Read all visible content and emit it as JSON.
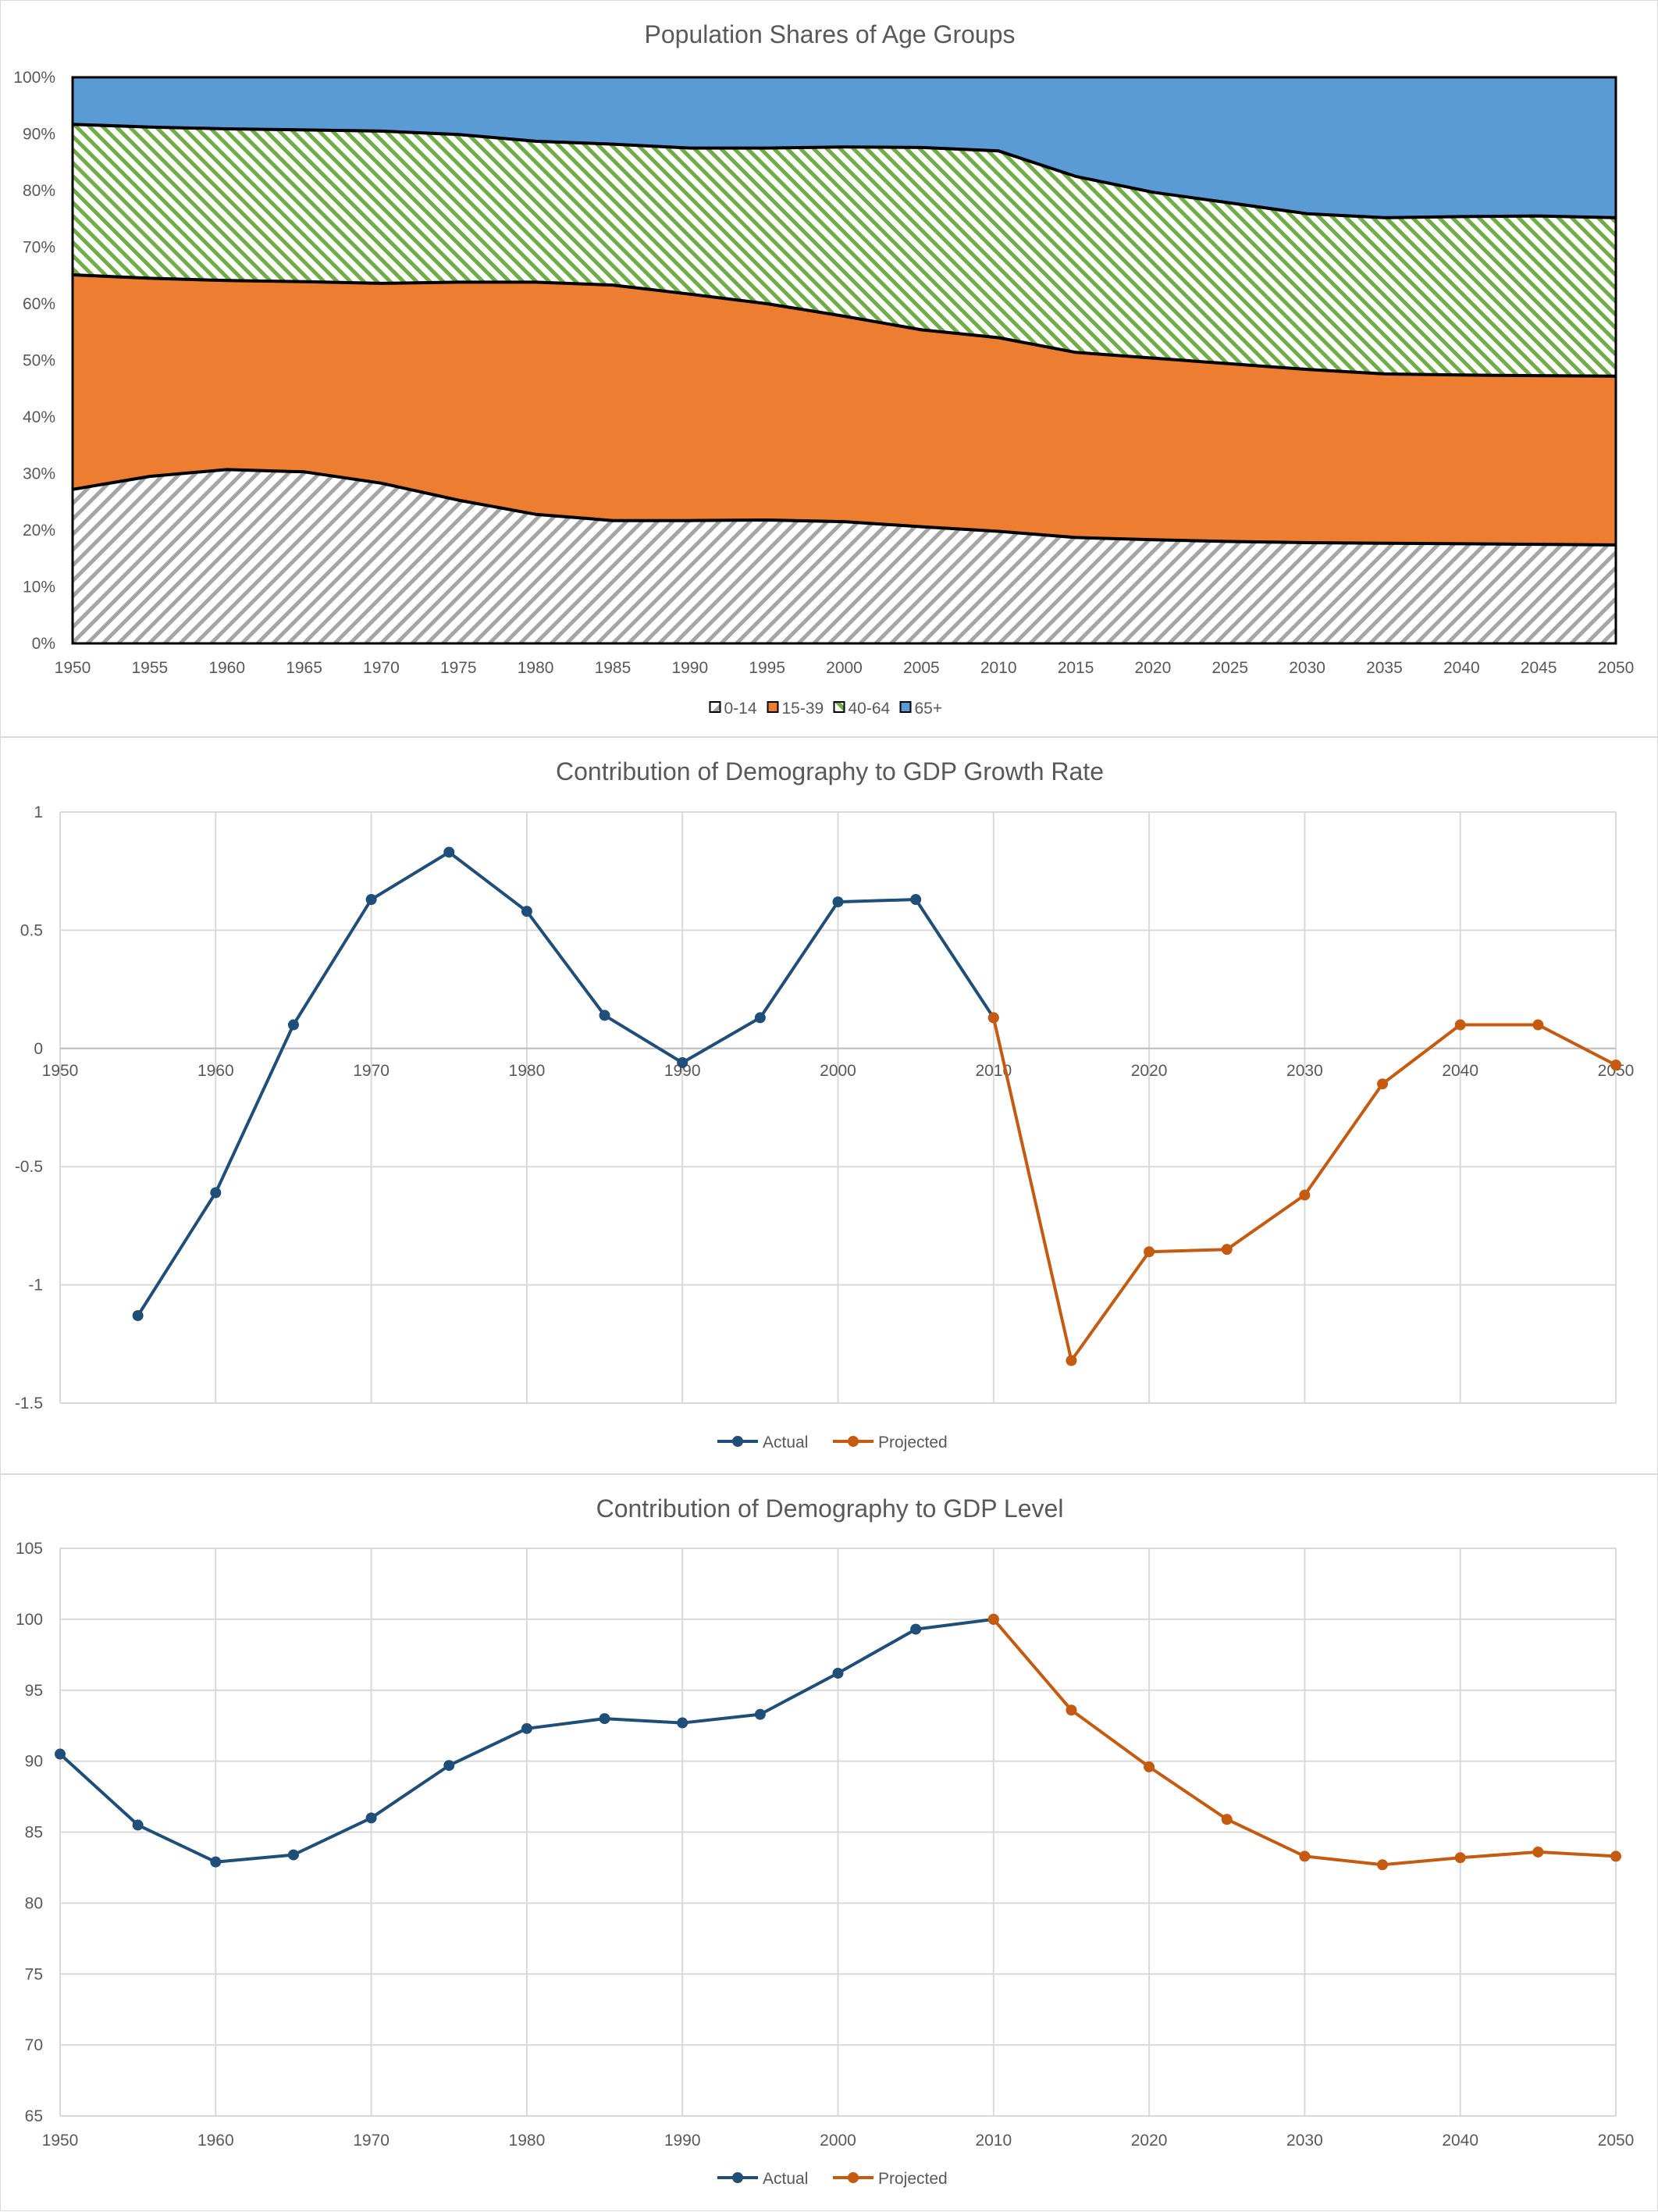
{
  "chart_data": [
    {
      "type": "area",
      "stacked": true,
      "percent": true,
      "title": "Population Shares of Age Groups",
      "x": [
        1950,
        1955,
        1960,
        1965,
        1970,
        1975,
        1980,
        1985,
        1990,
        1995,
        2000,
        2005,
        2010,
        2015,
        2020,
        2025,
        2030,
        2035,
        2040,
        2045,
        2050
      ],
      "yticks": [
        "0%",
        "10%",
        "20%",
        "30%",
        "40%",
        "50%",
        "60%",
        "70%",
        "80%",
        "90%",
        "100%"
      ],
      "ylim": [
        0,
        100
      ],
      "legend_position": "bottom",
      "series": [
        {
          "name": "0-14",
          "color": "#a5a5a5",
          "pattern": "diagonal-hatch",
          "values": [
            27.2,
            29.5,
            30.7,
            30.3,
            28.3,
            25.3,
            22.8,
            21.7,
            21.7,
            21.8,
            21.5,
            20.6,
            19.8,
            18.7,
            18.3,
            18.0,
            17.8,
            17.7,
            17.6,
            17.5,
            17.4
          ]
        },
        {
          "name": "15-39",
          "color": "#ed7d31",
          "values": [
            37.9,
            35.0,
            33.4,
            33.6,
            35.3,
            38.5,
            41.0,
            41.6,
            40.0,
            38.2,
            36.3,
            34.8,
            34.2,
            32.7,
            32.1,
            31.4,
            30.6,
            29.9,
            29.8,
            29.8,
            29.8
          ]
        },
        {
          "name": "40-64",
          "color": "#70ad47",
          "pattern": "diagonal-hatch",
          "values": [
            26.6,
            26.7,
            26.8,
            26.8,
            26.9,
            26.1,
            24.9,
            24.9,
            25.8,
            27.5,
            29.9,
            32.2,
            33.0,
            31.1,
            29.3,
            28.4,
            27.5,
            27.6,
            28.0,
            28.2,
            28.0
          ]
        },
        {
          "name": "65+",
          "color": "#5b9bd5",
          "values": [
            8.3,
            8.8,
            9.1,
            9.3,
            9.5,
            10.1,
            11.3,
            11.8,
            12.5,
            12.5,
            12.3,
            12.4,
            13.0,
            17.5,
            20.3,
            22.2,
            24.1,
            24.8,
            24.6,
            24.5,
            24.8
          ]
        }
      ]
    },
    {
      "type": "line",
      "title": "Contribution of Demography to GDP Growth Rate",
      "xticks": [
        1950,
        1960,
        1970,
        1980,
        1990,
        2000,
        2010,
        2020,
        2030,
        2040,
        2050
      ],
      "yticks": [
        "1",
        "0.5",
        "0",
        "-0.5",
        "-1",
        "-1.5"
      ],
      "ylim": [
        -1.5,
        1
      ],
      "xlim": [
        1950,
        2050
      ],
      "grid": true,
      "legend_position": "bottom",
      "series": [
        {
          "name": "Actual",
          "color": "#1f4e79",
          "x": [
            1955,
            1960,
            1965,
            1970,
            1975,
            1980,
            1985,
            1990,
            1995,
            2000,
            2005,
            2010
          ],
          "values": [
            -1.13,
            -0.61,
            0.1,
            0.63,
            0.83,
            0.58,
            0.14,
            -0.06,
            0.13,
            0.62,
            0.63,
            0.13
          ]
        },
        {
          "name": "Projected",
          "color": "#c55a11",
          "x": [
            2010,
            2015,
            2020,
            2025,
            2030,
            2035,
            2040,
            2045,
            2050
          ],
          "values": [
            0.13,
            -1.32,
            -0.86,
            -0.85,
            -0.62,
            -0.15,
            0.1,
            0.1,
            -0.07
          ]
        }
      ]
    },
    {
      "type": "line",
      "title": "Contribution of Demography to GDP Level",
      "xticks": [
        1950,
        1960,
        1970,
        1980,
        1990,
        2000,
        2010,
        2020,
        2030,
        2040,
        2050
      ],
      "yticks": [
        "105",
        "100",
        "95",
        "90",
        "85",
        "80",
        "75",
        "70",
        "65"
      ],
      "ylim": [
        65,
        105
      ],
      "xlim": [
        1950,
        2050
      ],
      "grid": true,
      "legend_position": "bottom",
      "series": [
        {
          "name": "Actual",
          "color": "#1f4e79",
          "x": [
            1950,
            1955,
            1960,
            1965,
            1970,
            1975,
            1980,
            1985,
            1990,
            1995,
            2000,
            2005,
            2010
          ],
          "values": [
            90.5,
            85.5,
            82.9,
            83.4,
            86.0,
            89.7,
            92.3,
            93.0,
            92.7,
            93.3,
            96.2,
            99.3,
            100.0
          ]
        },
        {
          "name": "Projected",
          "color": "#c55a11",
          "x": [
            2010,
            2015,
            2020,
            2025,
            2030,
            2035,
            2040,
            2045,
            2050
          ],
          "values": [
            100.0,
            93.6,
            89.6,
            85.9,
            83.3,
            82.7,
            83.2,
            83.6,
            83.3
          ]
        }
      ]
    }
  ]
}
